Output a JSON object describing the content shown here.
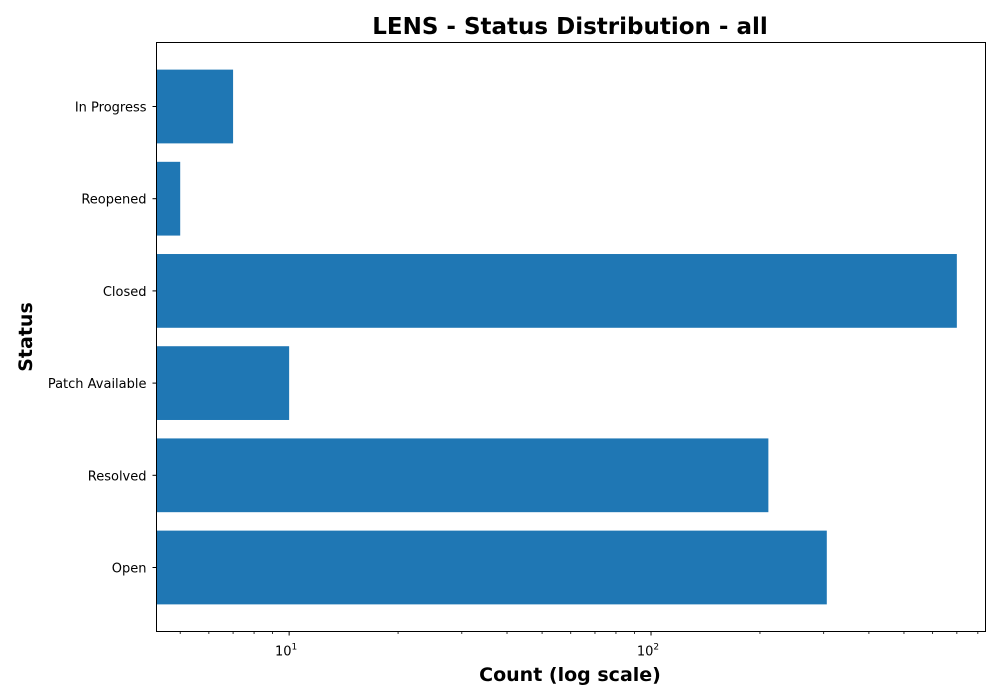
{
  "chart_data": {
    "type": "bar",
    "orientation": "horizontal",
    "title": "LENS - Status Distribution - all",
    "xlabel": "Count (log scale)",
    "ylabel": "Status",
    "xscale": "log",
    "xlim": [
      4.3,
      840
    ],
    "x_tick_labels": [
      {
        "value": 10,
        "base": "10",
        "exp": "1"
      },
      {
        "value": 100,
        "base": "10",
        "exp": "2"
      }
    ],
    "categories": [
      "In Progress",
      "Reopened",
      "Closed",
      "Patch Available",
      "Resolved",
      "Open"
    ],
    "values": [
      7,
      5,
      700,
      10,
      211,
      306
    ],
    "bar_color": "#1f77b4",
    "grid": false,
    "legend": "none"
  }
}
